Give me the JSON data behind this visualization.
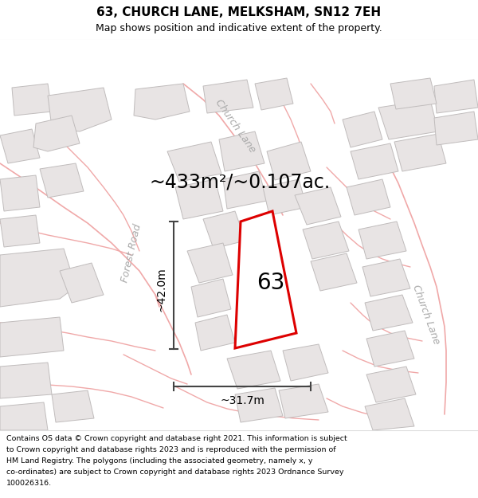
{
  "title": "63, CHURCH LANE, MELKSHAM, SN12 7EH",
  "subtitle": "Map shows position and indicative extent of the property.",
  "area_label": "~433m²/~0.107ac.",
  "label_63": "63",
  "dim_height": "~42.0m",
  "dim_width": "~31.7m",
  "street_forest_road": "Forest Road",
  "street_church_lane_top": "Church Lane",
  "street_church_lane_right": "Church Lane",
  "footer_lines": [
    "Contains OS data © Crown copyright and database right 2021. This information is subject",
    "to Crown copyright and database rights 2023 and is reproduced with the permission of",
    "HM Land Registry. The polygons (including the associated geometry, namely x, y",
    "co-ordinates) are subject to Crown copyright and database rights 2023 Ordnance Survey",
    "100026316."
  ],
  "map_bg": "#f9f6f6",
  "building_fill": "#e8e4e4",
  "building_edge": "#c0bcbc",
  "road_color": "#f0a8a8",
  "property_fill": "#ffffff",
  "property_color": "#dd0000",
  "dim_line_color": "#444444",
  "white": "#ffffff",
  "light_gray_text": "#aaaaaa",
  "border_color": "#dddddd",
  "title_fontsize": 11,
  "subtitle_fontsize": 9,
  "area_fontsize": 17,
  "street_fontsize": 9,
  "dim_fontsize": 10,
  "label63_fontsize": 20,
  "footer_fontsize": 6.8
}
